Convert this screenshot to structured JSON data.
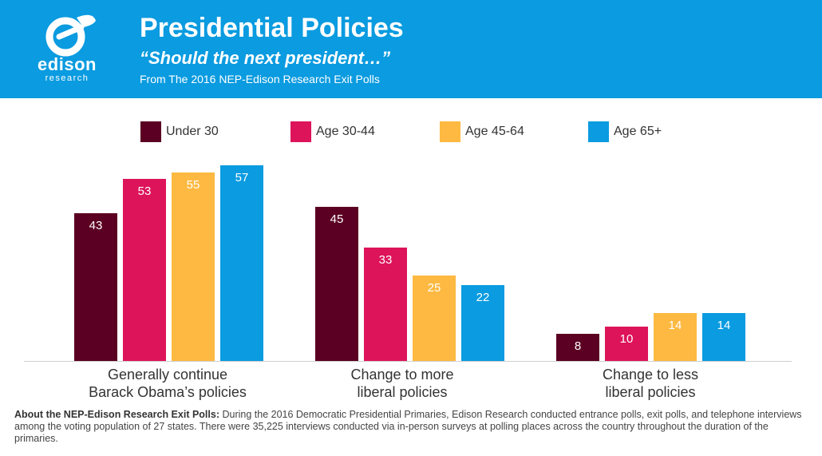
{
  "header": {
    "title": "Presidential Policies",
    "subtitle": "“Should the next president…”",
    "source": "From The 2016 NEP-Edison Research Exit Polls",
    "logo_word": "edison",
    "logo_sub": "research",
    "bg_color": "#0a9be0"
  },
  "chart_data": {
    "type": "bar",
    "categories": [
      "Generally continue\nBarack Obama’s policies",
      "Change to more\nliberal policies",
      "Change to less\nliberal policies"
    ],
    "series": [
      {
        "name": "Under 30",
        "color": "#5b0022",
        "values": [
          43,
          45,
          8
        ]
      },
      {
        "name": "Age 30-44",
        "color": "#dd1459",
        "values": [
          53,
          33,
          10
        ]
      },
      {
        "name": "Age 45-64",
        "color": "#fdb941",
        "values": [
          55,
          25,
          14
        ]
      },
      {
        "name": "Age 65+",
        "color": "#0a9be0",
        "values": [
          57,
          22,
          14
        ]
      }
    ],
    "legend_position": "top",
    "grid": false,
    "ylim": [
      0,
      60
    ]
  },
  "footnote": {
    "heading": "About the NEP-Edison Research Exit Polls:",
    "text": " During the 2016 Democratic Presidential Primaries, Edison Research conducted entrance polls, exit polls, and telephone interviews among the voting population of 27 states. There were 35,225 interviews conducted via in-person surveys at polling places across the country throughout the duration of the primaries."
  }
}
